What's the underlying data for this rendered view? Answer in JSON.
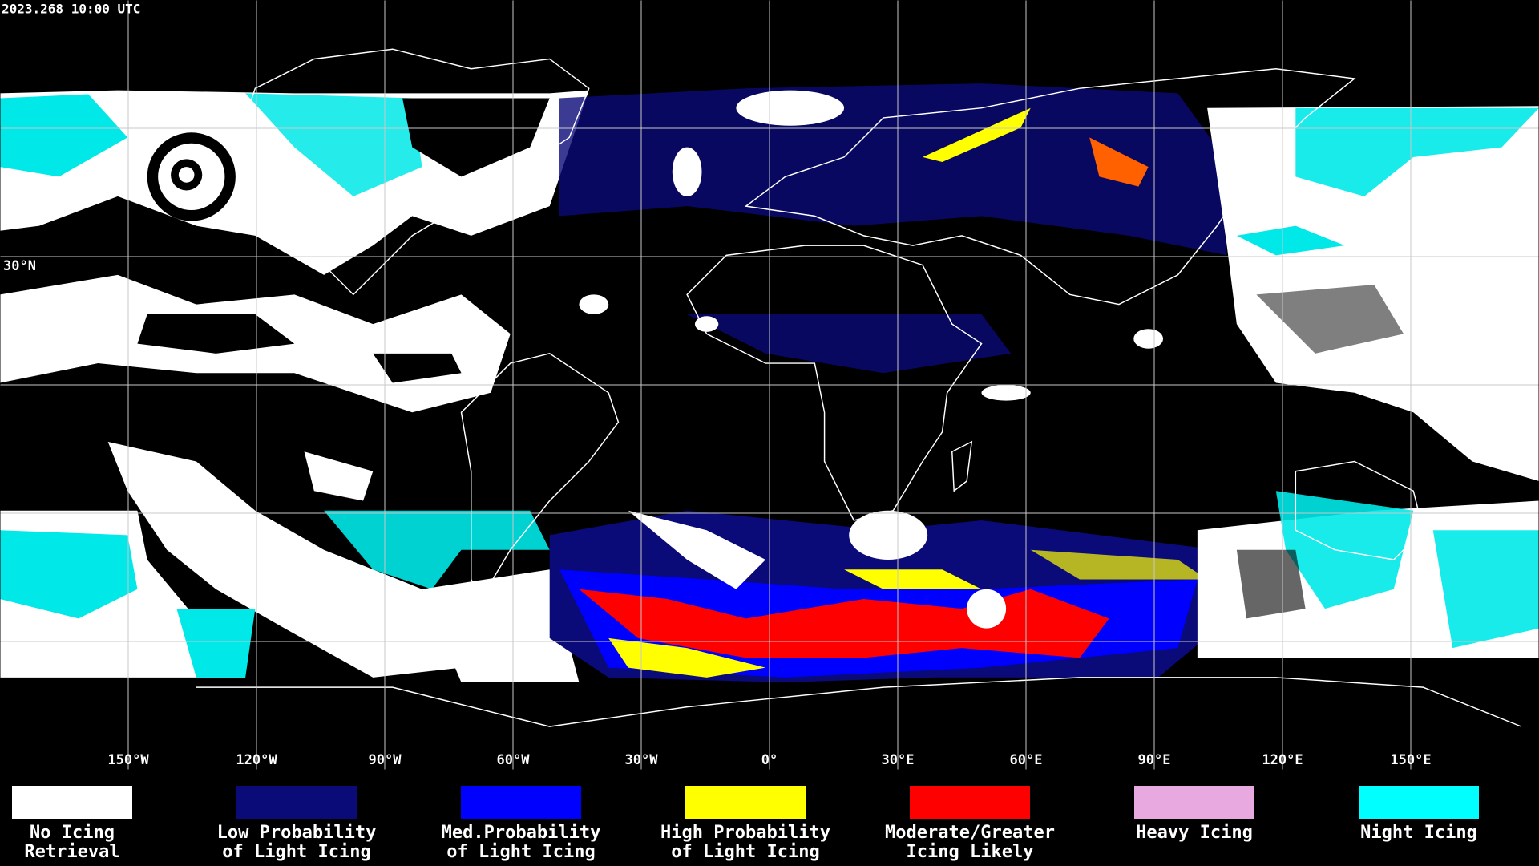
{
  "header": {
    "timestamp": "2023.268 10:00 UTC"
  },
  "map": {
    "longitude_labels": [
      "150°W",
      "120°W",
      "90°W",
      "60°W",
      "30°W",
      "0°",
      "30°E",
      "60°E",
      "90°E",
      "120°E",
      "150°E"
    ],
    "latitude_labels": [
      "30°N"
    ]
  },
  "legend": {
    "items": [
      {
        "label": [
          "No Icing",
          "Retrieval"
        ],
        "color": "#ffffff"
      },
      {
        "label": [
          "Low Probability",
          "of Light Icing"
        ],
        "color": "#0a0a78"
      },
      {
        "label": [
          "Med.Probability",
          "of Light Icing"
        ],
        "color": "#0000ff"
      },
      {
        "label": [
          "High Probability",
          "of Light Icing"
        ],
        "color": "#ffff00"
      },
      {
        "label": [
          "Moderate/Greater",
          "Icing Likely"
        ],
        "color": "#ff0000"
      },
      {
        "label": [
          "Heavy Icing"
        ],
        "color": "#e8a8e0"
      },
      {
        "label": [
          "Night Icing"
        ],
        "color": "#00ffff"
      }
    ]
  }
}
